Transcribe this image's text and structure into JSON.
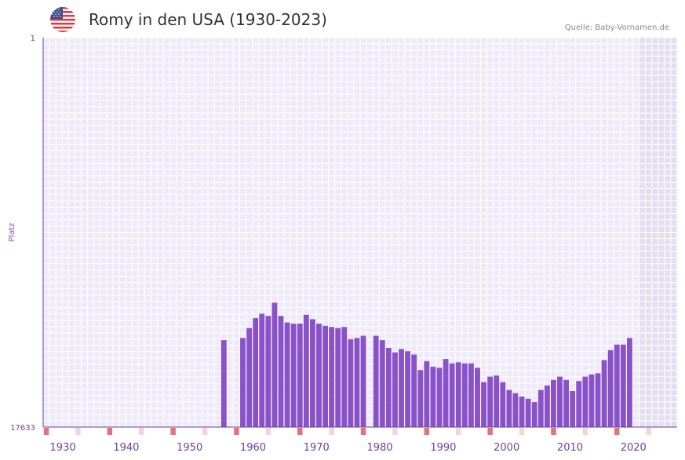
{
  "header": {
    "title": "Romy in den USA (1930-2023)",
    "source": "Quelle: Baby-Vornamen.de"
  },
  "colors": {
    "bar": "#8a52c9",
    "grid_bg": "#efeaf8",
    "future_bg": "#e4dff0",
    "axis": "#6b3fa0",
    "decade_marker": "#e57373",
    "mid_marker": "#f6d3dc"
  },
  "chart_data": {
    "type": "bar",
    "ylabel": "Platz",
    "y_axis_inverted": true,
    "ylim": [
      1,
      17633
    ],
    "yticks": [
      "1",
      "17633"
    ],
    "xlim": [
      1929,
      2029
    ],
    "xticks": [
      "1930",
      "1940",
      "1950",
      "1960",
      "1970",
      "1980",
      "1990",
      "2000",
      "2010",
      "2020"
    ],
    "grid": true,
    "shaded_future_from": 2023,
    "x": [
      1957,
      1960,
      1961,
      1962,
      1963,
      1964,
      1965,
      1966,
      1967,
      1968,
      1969,
      1970,
      1971,
      1972,
      1973,
      1974,
      1975,
      1976,
      1977,
      1978,
      1979,
      1981,
      1982,
      1983,
      1984,
      1985,
      1986,
      1987,
      1988,
      1989,
      1990,
      1991,
      1992,
      1993,
      1994,
      1995,
      1996,
      1997,
      1998,
      1999,
      2000,
      2001,
      2002,
      2003,
      2004,
      2005,
      2006,
      2007,
      2008,
      2009,
      2010,
      2011,
      2012,
      2013,
      2014,
      2015,
      2016,
      2017,
      2018,
      2019,
      2020,
      2021
    ],
    "values": [
      13700,
      13600,
      13150,
      12700,
      12500,
      12600,
      12000,
      12600,
      12900,
      12950,
      12950,
      12550,
      12750,
      12950,
      13050,
      13100,
      13150,
      13100,
      13650,
      13600,
      13500,
      13500,
      13700,
      14050,
      14250,
      14100,
      14200,
      14350,
      15050,
      14650,
      14900,
      14950,
      14550,
      14750,
      14700,
      14750,
      14750,
      14950,
      15600,
      15350,
      15300,
      15600,
      15950,
      16100,
      16250,
      16350,
      16500,
      15950,
      15750,
      15500,
      15350,
      15500,
      16000,
      15550,
      15350,
      15250,
      15200,
      14600,
      14150,
      13900,
      13900,
      13600
    ]
  }
}
